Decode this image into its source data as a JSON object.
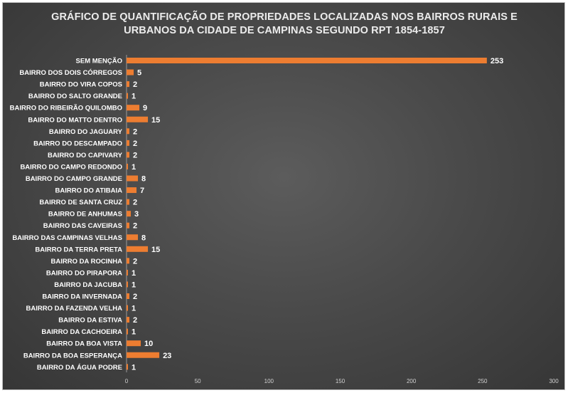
{
  "chart_data": {
    "type": "bar",
    "orientation": "horizontal",
    "title_lines": [
      "GRÁFICO DE QUANTIFICAÇÃO DE PROPRIEDADES LOCALIZADAS NOS BAIRROS RURAIS E",
      "URBANOS DA CIDADE DE CAMPINAS SEGUNDO RPT 1854-1857"
    ],
    "categories": [
      "SEM MENÇÃO",
      "BAIRRO DOS DOIS CÓRREGOS",
      "BAIRRO DO VIRA COPOS",
      "BAIRRO DO SALTO GRANDE",
      "BAIRRO DO RIBEIRÃO QUILOMBO",
      "BAIRRO DO MATTO DENTRO",
      "BAIRRO DO JAGUARY",
      "BAIRRO DO DESCAMPADO",
      "BAIRRO DO CAPIVARY",
      "BAIRRO DO CAMPO REDONDO",
      "BAIRRO DO CAMPO GRANDE",
      "BAIRRO DO ATIBAIA",
      "BAIRRO DE SANTA CRUZ",
      "BAIRRO DE ANHUMAS",
      "BAIRRO DAS CAVEIRAS",
      "BAIRRO DAS CAMPINAS VELHAS",
      "BAIRRO DA TERRA PRETA",
      "BAIRRO DA ROCINHA",
      "BAIRRO DO PIRAPORA",
      "BAIRRO DA JACUBA",
      "BAIRRO DA INVERNADA",
      "BAIRRO DA FAZENDA VELHA",
      "BAIRRO DA ESTIVA",
      "BAIRRO DA CACHOEIRA",
      "BAIRRO DA BOA VISTA",
      "BAIRRO DA BOA ESPERANÇA",
      "BAIRRO DA ÁGUA PODRE"
    ],
    "values": [
      253,
      5,
      2,
      1,
      9,
      15,
      2,
      2,
      2,
      1,
      8,
      7,
      2,
      3,
      2,
      8,
      15,
      2,
      1,
      1,
      2,
      1,
      2,
      1,
      10,
      23,
      1
    ],
    "xlim": [
      0,
      300
    ],
    "xticks": [
      0,
      50,
      100,
      150,
      200,
      250,
      300
    ],
    "grid": false,
    "legend": "none",
    "colors": {
      "bar": "#ed7d31",
      "label": "#ffffff",
      "tick": "#d0d0d0",
      "title": "#ececec",
      "axis": "#9a9a9a"
    }
  }
}
